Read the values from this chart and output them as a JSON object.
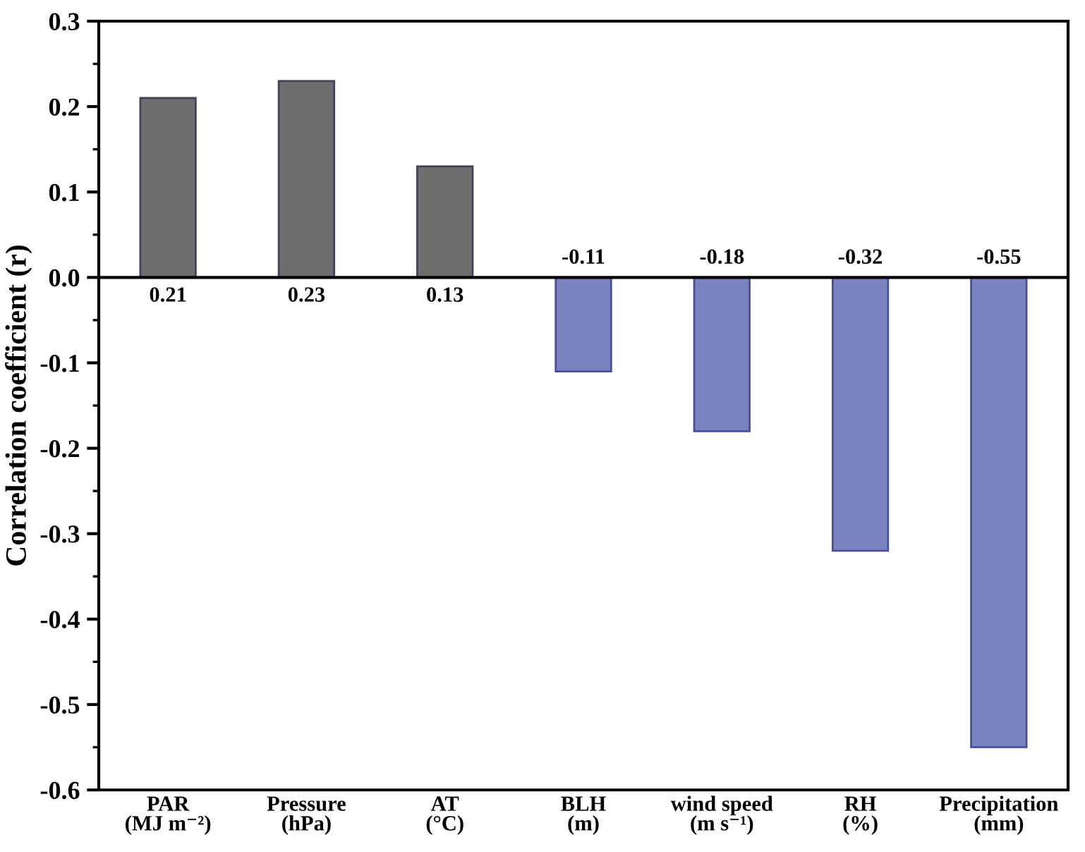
{
  "chart_data": {
    "type": "bar",
    "ylabel": "Correlation coefficient (r)",
    "categories": [
      "PAR\n(MJ m⁻²)",
      "Pressure\n(hPa)",
      "AT\n(°C)",
      "BLH\n(m)",
      "wind speed\n(m s⁻¹)",
      "RH\n(%)",
      "Precipitation\n(mm)"
    ],
    "values": [
      0.21,
      0.23,
      0.13,
      -0.11,
      -0.18,
      -0.32,
      -0.55
    ],
    "colors": [
      "#6e6e6e",
      "#6e6e6e",
      "#6e6e6e",
      "#7b82c0",
      "#7b82c0",
      "#7b82c0",
      "#7b82c0"
    ],
    "ylim": [
      -0.6,
      0.3
    ],
    "yticks": [
      -0.6,
      -0.5,
      -0.4,
      -0.3,
      -0.2,
      -0.1,
      {
        "value": 0,
        "label": "0.0"
      },
      0.1,
      0.2,
      0.3
    ],
    "ref_lines": [
      {
        "axis": "y",
        "value": 0,
        "color": "#000000"
      }
    ],
    "data_labels": true
  }
}
